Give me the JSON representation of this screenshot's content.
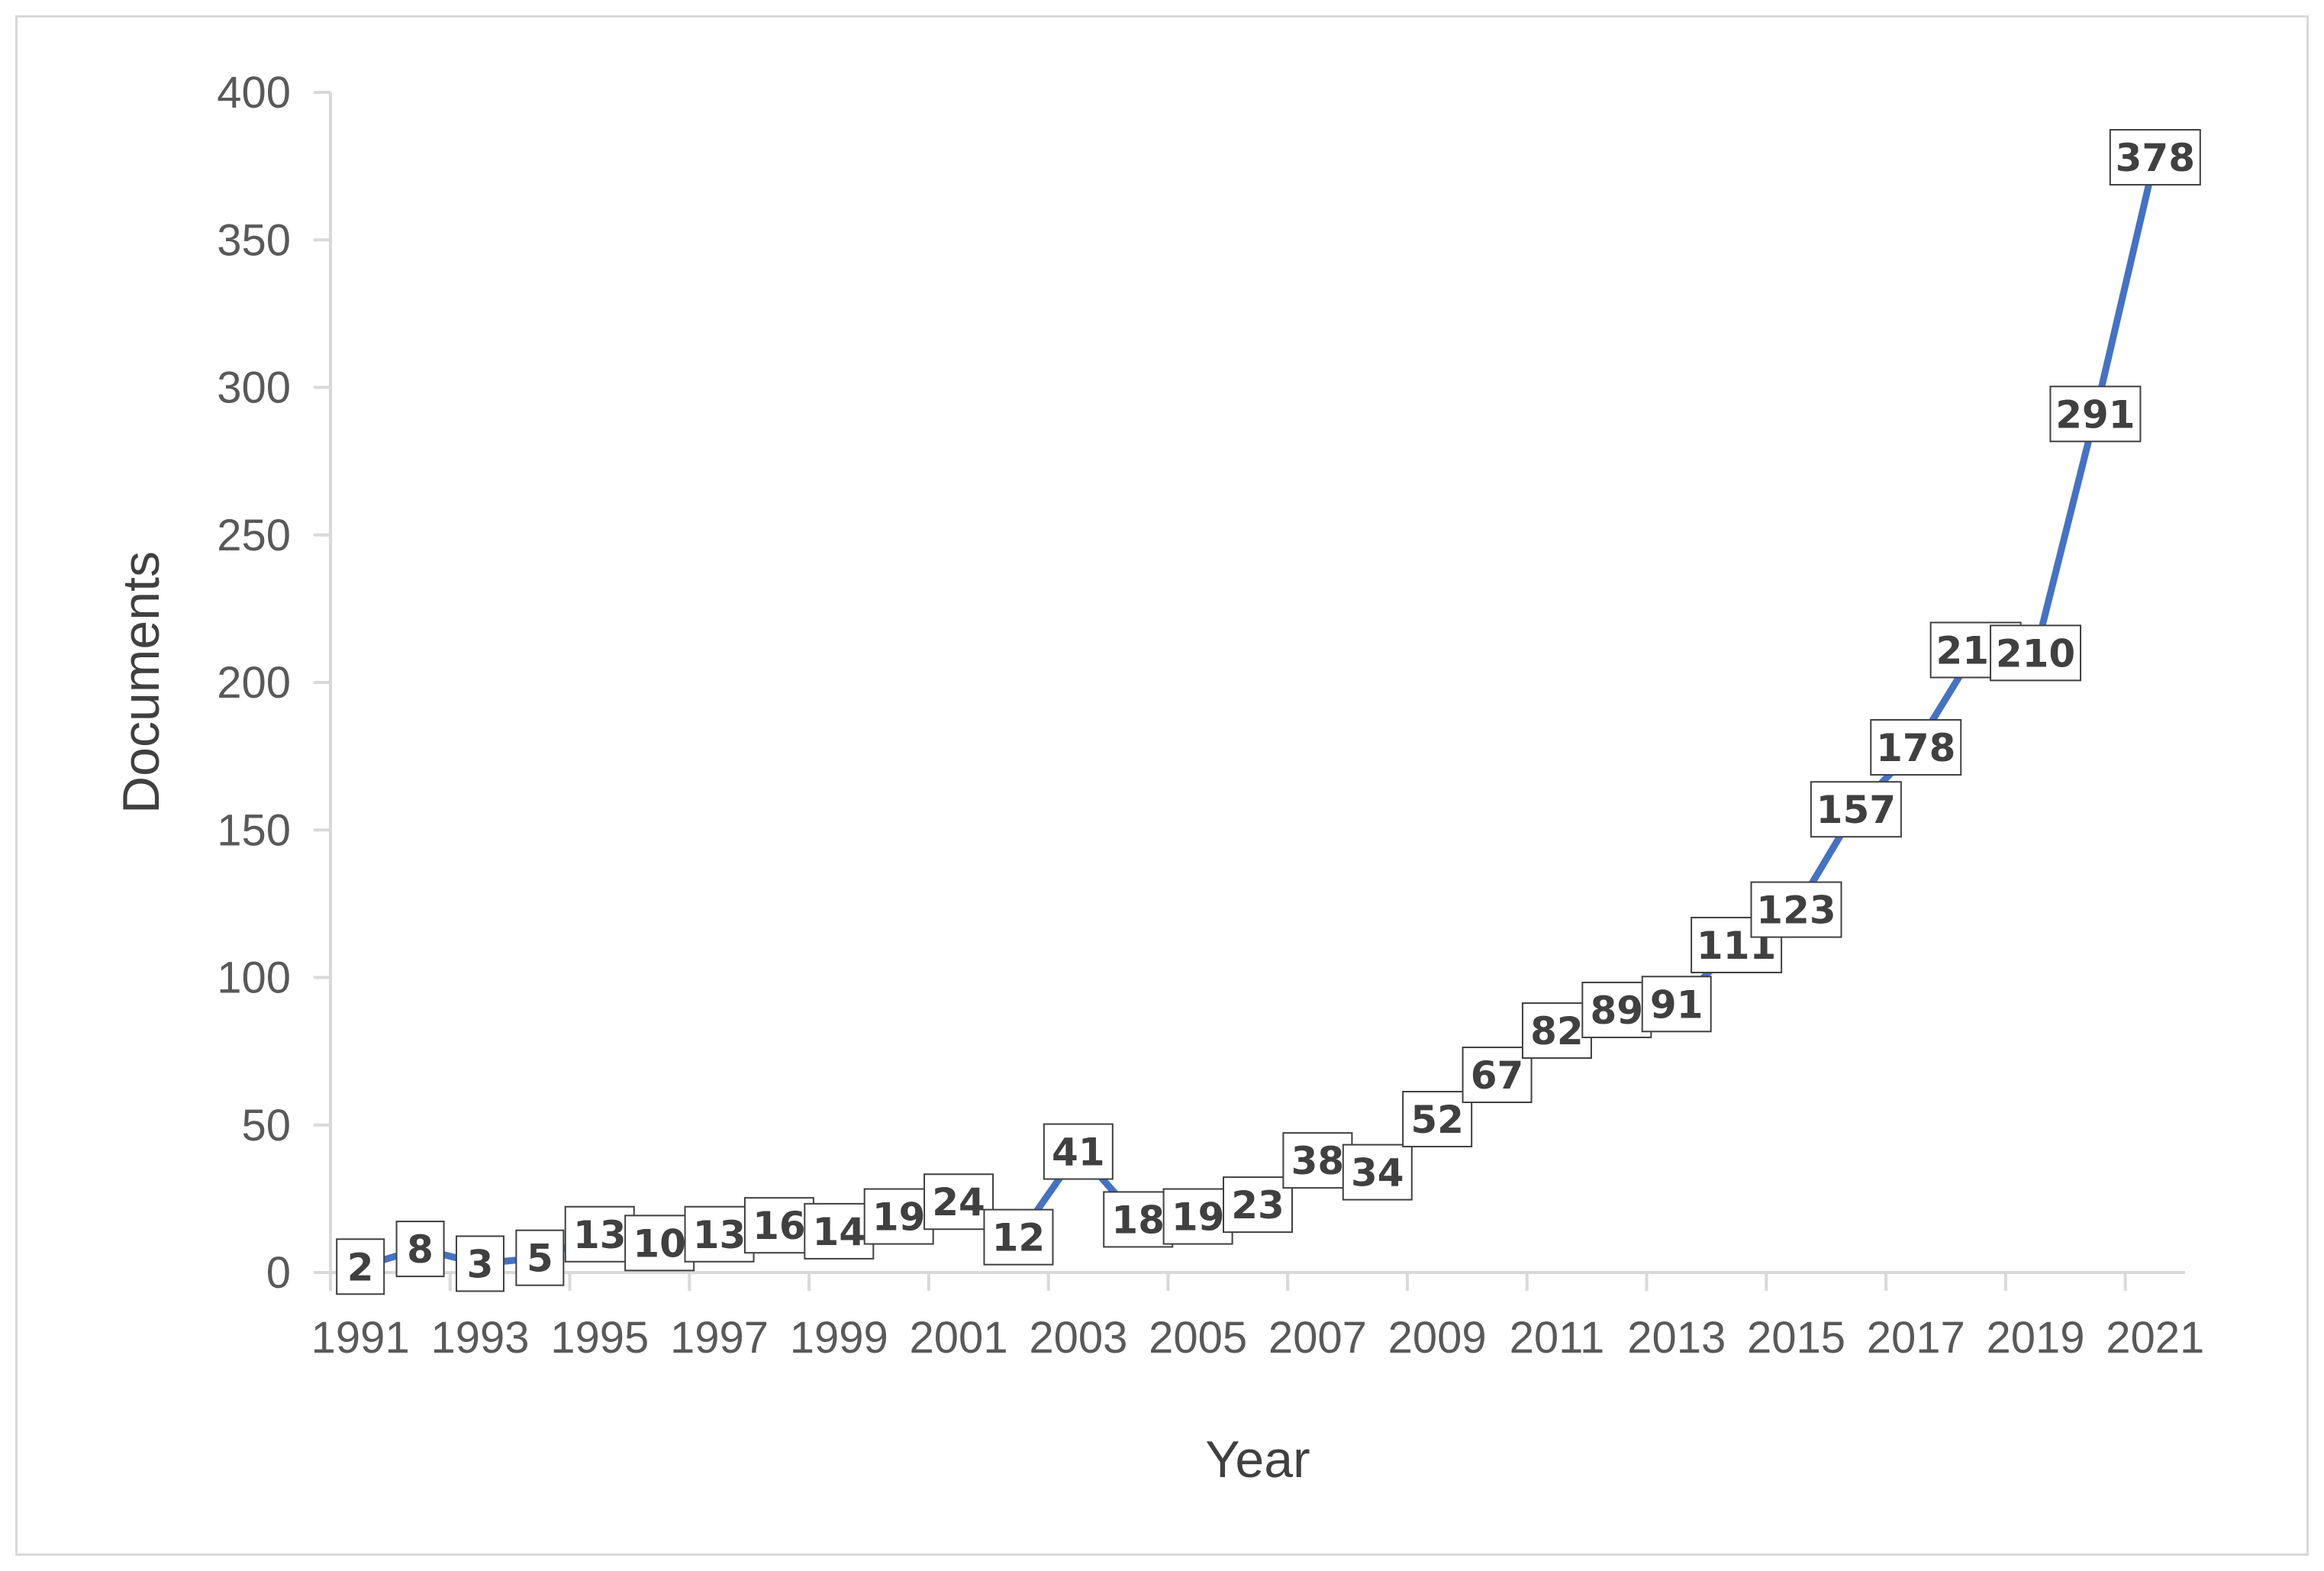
{
  "chart_data": {
    "type": "line",
    "xlabel": "Year",
    "ylabel": "Documents",
    "ylim": [
      0,
      400
    ],
    "yticks": [
      0,
      50,
      100,
      150,
      200,
      250,
      300,
      350,
      400
    ],
    "x": [
      1991,
      1992,
      1993,
      1994,
      1995,
      1996,
      1997,
      1998,
      1999,
      2000,
      2001,
      2002,
      2003,
      2004,
      2005,
      2006,
      2007,
      2008,
      2009,
      2010,
      2011,
      2012,
      2013,
      2014,
      2015,
      2016,
      2017,
      2018,
      2019,
      2020,
      2021
    ],
    "xtick_labels": [
      "1991",
      "1993",
      "1995",
      "1997",
      "1999",
      "2001",
      "2003",
      "2005",
      "2007",
      "2009",
      "2011",
      "2013",
      "2015",
      "2017",
      "2019",
      "2021"
    ],
    "series": [
      {
        "values": [
          2,
          8,
          3,
          5,
          13,
          10,
          13,
          16,
          14,
          19,
          24,
          12,
          41,
          18,
          19,
          23,
          38,
          34,
          52,
          67,
          82,
          89,
          91,
          111,
          123,
          157,
          178,
          211,
          210,
          291,
          378
        ],
        "color": "#4472c4"
      }
    ],
    "grid": false,
    "legend": "none",
    "data_labels": true
  }
}
